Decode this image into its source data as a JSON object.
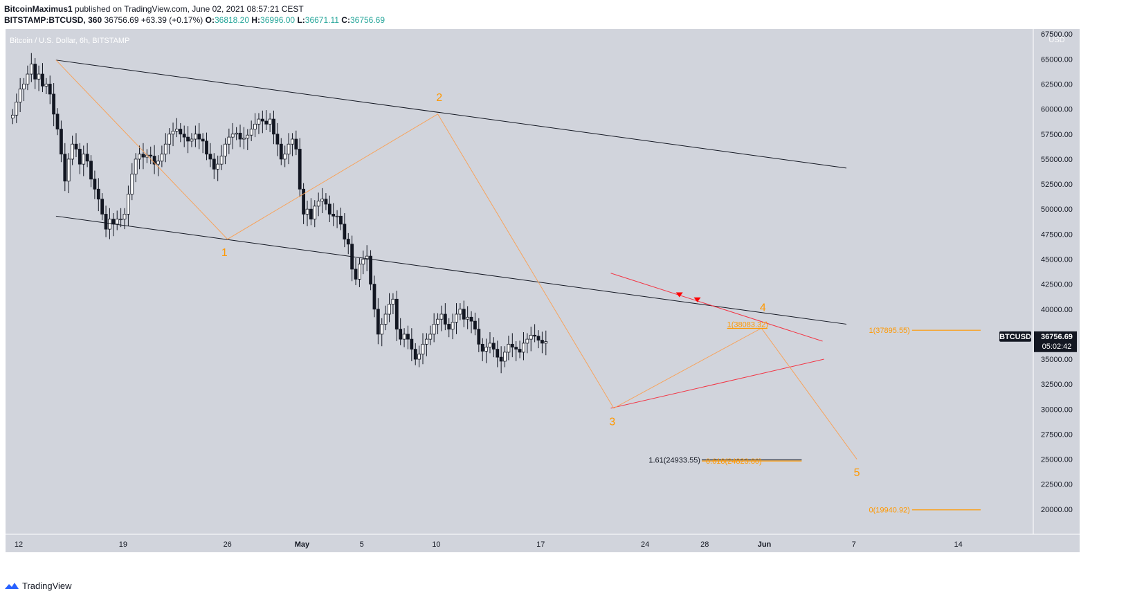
{
  "header": {
    "author": "BitcoinMaximus1",
    "published_text": " published on TradingView.com, June 02, 2021 08:57:21 CEST",
    "symbol": "BITSTAMP:BTCUSD, 360",
    "price": "36756.69",
    "change": "+63.39 (+0.17%)",
    "o_label": "O:",
    "o": "36818.20",
    "h_label": "H:",
    "h": "36996.00",
    "l_label": "L:",
    "l": "36671.11",
    "c_label": "C:",
    "c": "36756.69"
  },
  "footer": {
    "brand": "TradingView"
  },
  "chart_data": {
    "type": "candlestick",
    "title": "Bitcoin / U.S. Dollar, 6h, BITSTAMP",
    "currency_label": "USD",
    "ylim": [
      17500,
      68000
    ],
    "y_ticks": [
      20000,
      22500,
      25000,
      27500,
      30000,
      32500,
      35000,
      37500,
      40000,
      42500,
      45000,
      47500,
      50000,
      52500,
      55000,
      57500,
      60000,
      62500,
      65000,
      67500
    ],
    "y_tick_labels": [
      "20000.00",
      "22500.00",
      "25000.00",
      "27500.00",
      "30000.00",
      "32500.00",
      "35000.00",
      "37500.00",
      "40000.00",
      "42500.00",
      "45000.00",
      "47500.00",
      "50000.00",
      "52500.00",
      "55000.00",
      "57500.00",
      "60000.00",
      "62500.00",
      "65000.00",
      "67500.00"
    ],
    "x_ticks": [
      {
        "day": 12,
        "label": "12"
      },
      {
        "day": 19,
        "label": "19"
      },
      {
        "day": 26,
        "label": "26"
      },
      {
        "day": 31,
        "label": "May"
      },
      {
        "day": 35,
        "label": "5"
      },
      {
        "day": 40,
        "label": "10"
      },
      {
        "day": 47,
        "label": "17"
      },
      {
        "day": 54,
        "label": "24"
      },
      {
        "day": 58,
        "label": "28"
      },
      {
        "day": 62,
        "label": "Jun"
      },
      {
        "day": 68,
        "label": "7"
      },
      {
        "day": 75,
        "label": "14"
      }
    ],
    "price_close": [
      59400,
      60700,
      62000,
      62500,
      63500,
      64500,
      63000,
      63500,
      62300,
      62500,
      61500,
      59500,
      58000,
      55500,
      52800,
      55000,
      56500,
      56000,
      54500,
      55500,
      54800,
      53000,
      52000,
      51000,
      49500,
      48000,
      49000,
      48500,
      49000,
      49000,
      49500,
      51500,
      53500,
      55000,
      55500,
      55200,
      55400,
      55300,
      54500,
      54800,
      55500,
      56500,
      57500,
      57800,
      58000,
      57500,
      57200,
      56800,
      57000,
      57500,
      57000,
      56800,
      55500,
      55000,
      54000,
      54500,
      55300,
      56500,
      57200,
      57500,
      57600,
      57000,
      57100,
      57400,
      58000,
      58500,
      59000,
      58800,
      58500,
      59000,
      57500,
      56500,
      55000,
      55500,
      56500,
      57000,
      56000,
      52000,
      49500,
      50000,
      49000,
      50300,
      50800,
      51000,
      50500,
      49500,
      49300,
      49300,
      48500,
      47000,
      46500,
      44000,
      43000,
      44500,
      45000,
      45300,
      42500,
      40000,
      37500,
      38500,
      39500,
      40500,
      41000,
      38000,
      37000,
      37500,
      37000,
      36000,
      35000,
      35500,
      36500,
      37000,
      37500,
      38500,
      39000,
      39500,
      38500,
      38000,
      38700,
      39500,
      40000,
      39000,
      39200,
      38800,
      38000,
      36500,
      35800,
      36200,
      36600,
      36000,
      35200,
      34800,
      35700,
      36500,
      36200,
      36000,
      35700,
      36600,
      37000,
      37400,
      37300,
      36900,
      36600,
      36757
    ],
    "last_price_label": "36756.69",
    "countdown": "05:02:42",
    "symbol_tag": "BTCUSD",
    "channel_lines": [
      {
        "name": "channel-upper",
        "from": {
          "day": 14.5,
          "price": 64900
        },
        "to": {
          "day": 67.5,
          "price": 54100
        },
        "color": "#131722"
      },
      {
        "name": "channel-lower",
        "from": {
          "day": 14.5,
          "price": 49300
        },
        "to": {
          "day": 67.5,
          "price": 38500
        },
        "color": "#131722"
      }
    ],
    "triangle_lines": [
      {
        "name": "triangle-upper",
        "from": {
          "day": 51.7,
          "price": 43600
        },
        "to": {
          "day": 65.9,
          "price": 36800
        },
        "color": "#f23645"
      },
      {
        "name": "triangle-lower",
        "from": {
          "day": 51.7,
          "price": 30100
        },
        "to": {
          "day": 66,
          "price": 35000
        },
        "color": "#f23645"
      }
    ],
    "wave_path": [
      {
        "day": 14.5,
        "price": 64900
      },
      {
        "day": 26,
        "price": 47000
      },
      {
        "day": 40.1,
        "price": 59500
      },
      {
        "day": 51.9,
        "price": 30100
      },
      {
        "day": 61.8,
        "price": 38100
      },
      {
        "day": 68.2,
        "price": 25000
      }
    ],
    "wave_color": "#f7a35c",
    "wave_labels": [
      {
        "label": "1",
        "day": 25.8,
        "price": 45300
      },
      {
        "label": "2",
        "day": 40.2,
        "price": 60800
      },
      {
        "label": "3",
        "day": 51.8,
        "price": 28400
      },
      {
        "label": "4",
        "day": 61.9,
        "price": 39800
      },
      {
        "label": "5",
        "day": 68.2,
        "price": 23300
      }
    ],
    "resistance_markers": [
      {
        "day": 56.3,
        "price": 41400
      },
      {
        "day": 57.5,
        "price": 40900
      }
    ],
    "fib_levels": [
      {
        "name": "fib-1-near",
        "label": "1(38083.32)",
        "price": 38083,
        "from_day": 59.5,
        "to_day": 62.2,
        "color": "#ff9800"
      },
      {
        "name": "fib-1-far",
        "label": "1(37895.55)",
        "price": 37896,
        "from_day": 71.9,
        "to_day": 76.5,
        "color": "#ff9800"
      },
      {
        "name": "fib-161",
        "label": "1.61(24933.55)",
        "price": 24934,
        "from_day": 57.8,
        "to_day": 64.5,
        "color": "#131722"
      },
      {
        "name": "fib-0618",
        "label": "0.618(24823.80)",
        "price": 24824,
        "from_day": 57.8,
        "to_day": 64.5,
        "color": "#ff9800"
      },
      {
        "name": "fib-0",
        "label": "0(19940.92)",
        "price": 19941,
        "from_day": 71.9,
        "to_day": 76.5,
        "color": "#ff9800"
      }
    ],
    "colors": {
      "background": "#d1d4dc",
      "candle_up": "#ffffff",
      "candle_down": "#131722",
      "axis_text": "#131722",
      "last_price_bg": "#131722",
      "label_orange": "#ff9800"
    }
  }
}
